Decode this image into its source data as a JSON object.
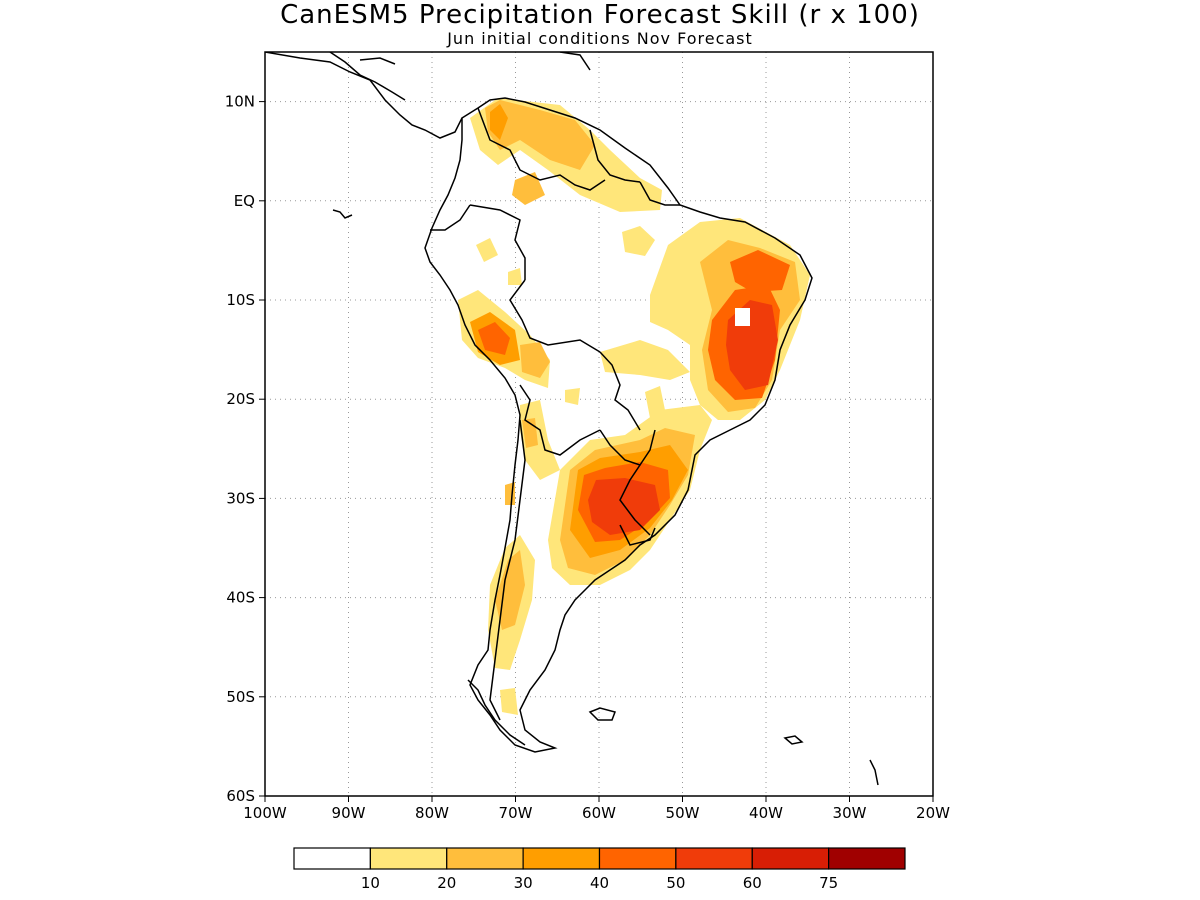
{
  "figure": {
    "title": "CanESM5 Precipitation Forecast Skill (r x 100)",
    "subtitle": "Jun initial conditions   Nov Forecast"
  },
  "map": {
    "lon_range": [
      -100,
      -20
    ],
    "lat_range": [
      -60,
      15
    ],
    "x_ticks": [
      {
        "lon": -100,
        "label": "100W"
      },
      {
        "lon": -90,
        "label": "90W"
      },
      {
        "lon": -80,
        "label": "80W"
      },
      {
        "lon": -70,
        "label": "70W"
      },
      {
        "lon": -60,
        "label": "60W"
      },
      {
        "lon": -50,
        "label": "50W"
      },
      {
        "lon": -40,
        "label": "40W"
      },
      {
        "lon": -30,
        "label": "30W"
      },
      {
        "lon": -20,
        "label": "20W"
      }
    ],
    "y_ticks": [
      {
        "lat": 10,
        "label": "10N"
      },
      {
        "lat": 0,
        "label": "EQ"
      },
      {
        "lat": -10,
        "label": "10S"
      },
      {
        "lat": -20,
        "label": "20S"
      },
      {
        "lat": -30,
        "label": "30S"
      },
      {
        "lat": -40,
        "label": "40S"
      },
      {
        "lat": -50,
        "label": "50S"
      },
      {
        "lat": -60,
        "label": "60S"
      }
    ],
    "grid": true
  },
  "colorbar": {
    "colors": [
      "#ffffff",
      "#ffe67a",
      "#ffbe3c",
      "#ff9e00",
      "#ff6400",
      "#f03c0a",
      "#d81e05",
      "#a00000"
    ],
    "labels": [
      "10",
      "20",
      "30",
      "40",
      "50",
      "60",
      "75"
    ]
  }
}
